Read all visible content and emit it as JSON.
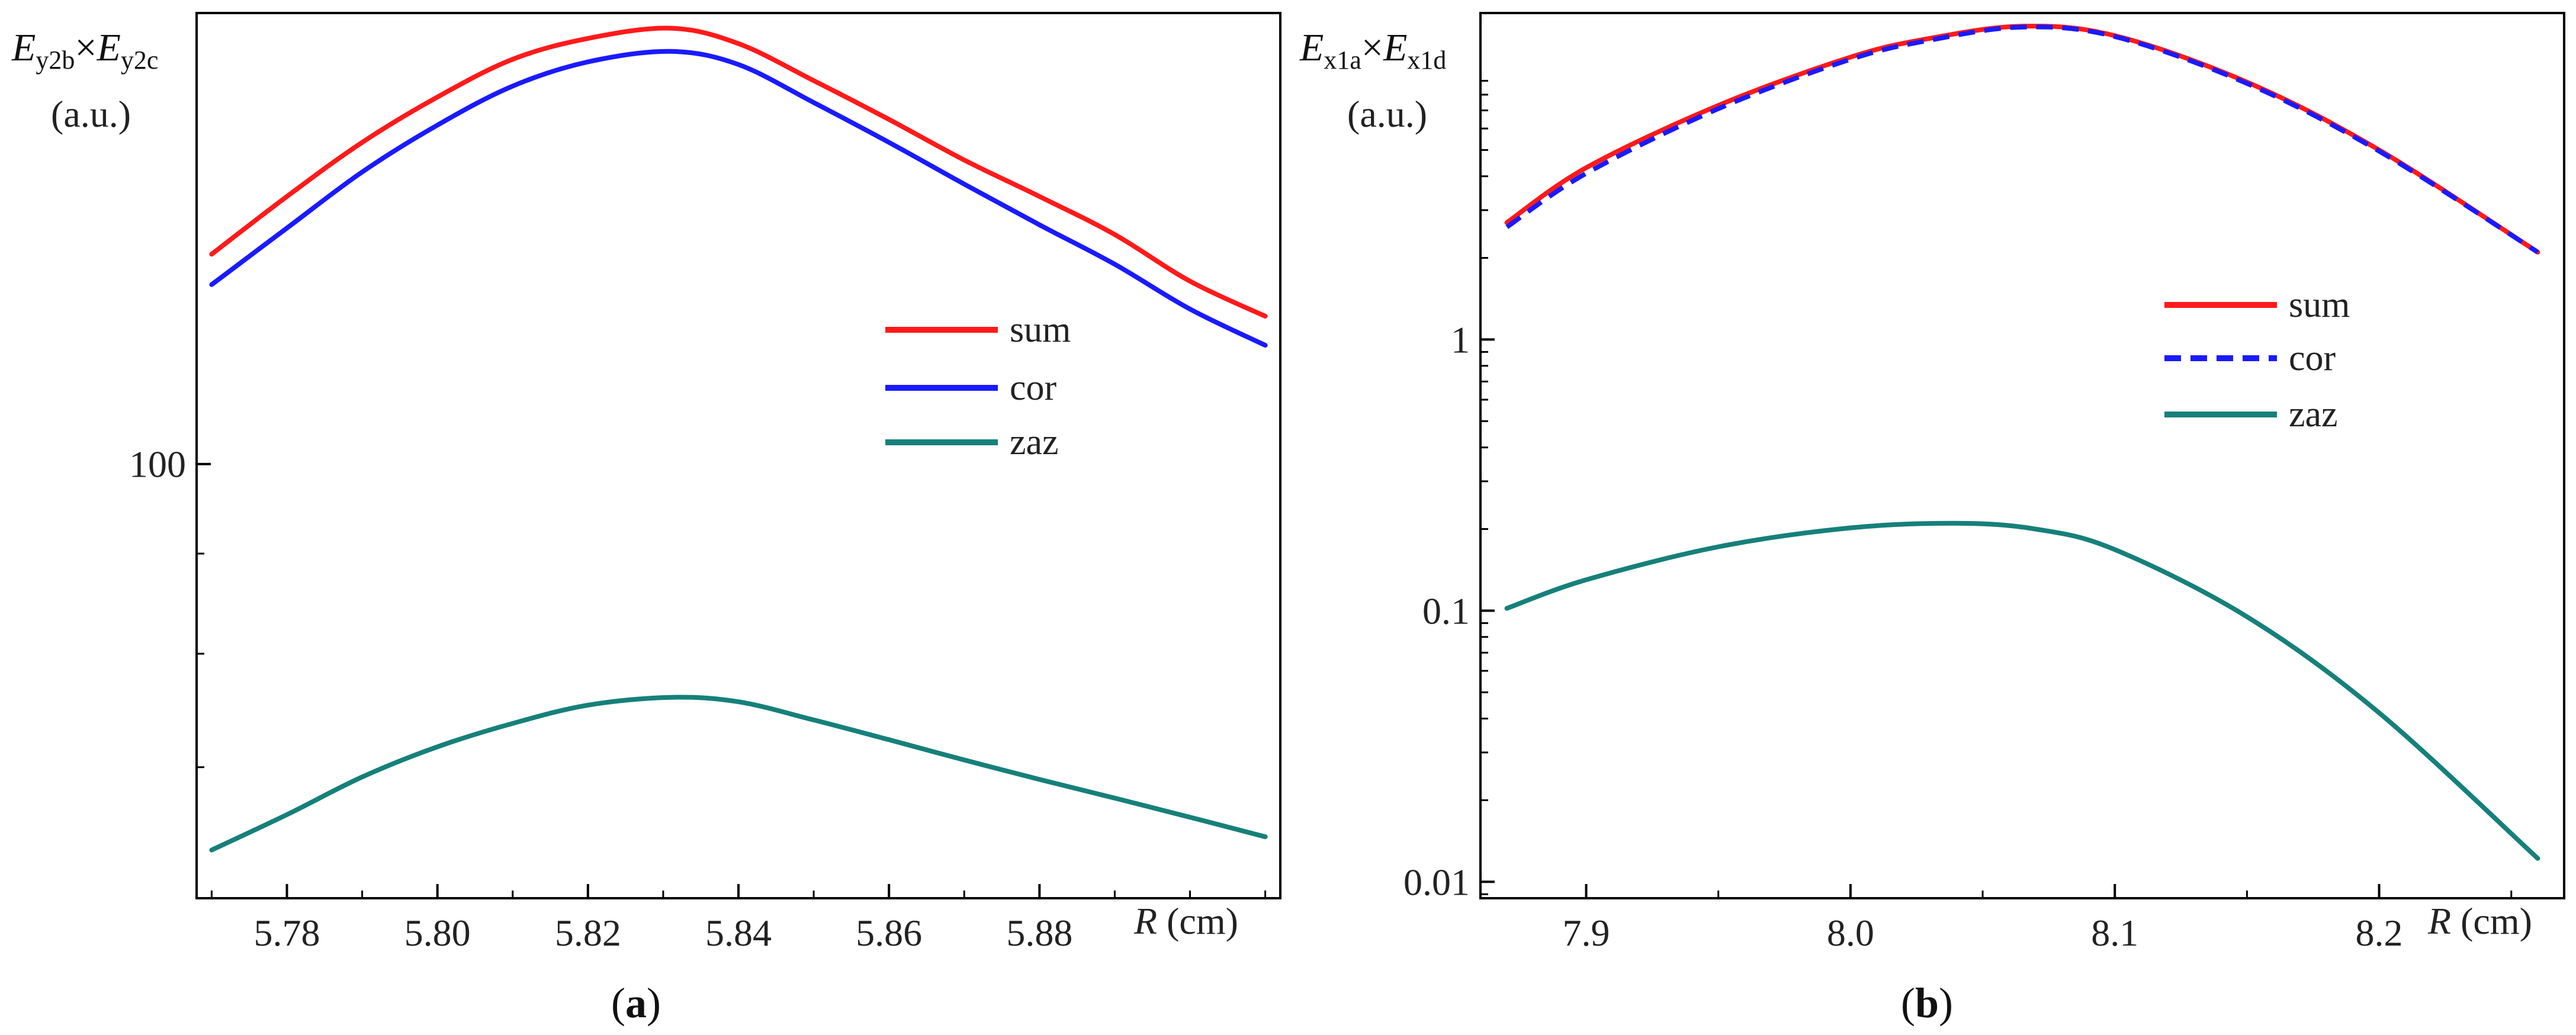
{
  "chart_data": [
    {
      "type": "line",
      "panel_label": {
        "open": "(",
        "letter": "a",
        "close": ")"
      },
      "ylabel": {
        "base1": "E",
        "sub1": "y2b",
        "times": "×",
        "base2": "E",
        "sub2": "y2c",
        "unit": "(a.u.)"
      },
      "xlabel": {
        "symbol": "R",
        "unit": "(cm)"
      },
      "x_log": false,
      "y_log": true,
      "xlim": [
        5.768,
        5.912
      ],
      "ylim": [
        60,
        170
      ],
      "x_ticks": [
        "5.78",
        "5.80",
        "5.82",
        "5.84",
        "5.86",
        "5.88"
      ],
      "y_ticks": [
        "100"
      ],
      "legend_position": "center-right",
      "series": [
        {
          "name": "sum",
          "color": "#ff1a1a",
          "dash": "solid",
          "x": [
            5.77,
            5.78,
            5.79,
            5.8,
            5.81,
            5.82,
            5.831,
            5.84,
            5.85,
            5.86,
            5.87,
            5.88,
            5.89,
            5.9,
            5.91
          ],
          "y": [
            128,
            137,
            146,
            154,
            161,
            165,
            167,
            164,
            157,
            150,
            143,
            137,
            131,
            124,
            119
          ]
        },
        {
          "name": "cor",
          "color": "#1a1aff",
          "dash": "solid",
          "x": [
            5.77,
            5.78,
            5.79,
            5.8,
            5.81,
            5.82,
            5.831,
            5.84,
            5.85,
            5.86,
            5.87,
            5.88,
            5.89,
            5.9,
            5.91
          ],
          "y": [
            123.5,
            132,
            141,
            149,
            156,
            160.5,
            162.5,
            160,
            153,
            146,
            139,
            132.5,
            126.5,
            120,
            115
          ]
        },
        {
          "name": "zaz",
          "color": "#16807a",
          "dash": "solid",
          "x": [
            5.77,
            5.78,
            5.79,
            5.8,
            5.81,
            5.82,
            5.831,
            5.84,
            5.85,
            5.86,
            5.87,
            5.88,
            5.89,
            5.9,
            5.91
          ],
          "y": [
            63.5,
            66.2,
            69.2,
            71.7,
            73.7,
            75.3,
            76.0,
            75.6,
            74.0,
            72.3,
            70.6,
            69.0,
            67.5,
            66.0,
            64.5
          ]
        }
      ]
    },
    {
      "type": "line",
      "panel_label": {
        "open": "(",
        "letter": "b",
        "close": ")"
      },
      "ylabel": {
        "base1": "E",
        "sub1": "x1a",
        "times": "×",
        "base2": "E",
        "sub2": "x1d",
        "unit": "(a.u.)"
      },
      "xlabel": {
        "symbol": "R",
        "unit": "(cm)"
      },
      "x_log": false,
      "y_log": true,
      "xlim": [
        7.86,
        8.27
      ],
      "ylim": [
        0.0087,
        16
      ],
      "x_ticks": [
        "7.9",
        "8.0",
        "8.1",
        "8.2"
      ],
      "y_ticks": [
        "0.01",
        "0.1",
        "1"
      ],
      "legend_position": "center-right",
      "series": [
        {
          "name": "sum",
          "color": "#ff1a1a",
          "dash": "solid",
          "x": [
            7.87,
            7.9,
            7.95,
            8.0,
            8.03,
            8.065,
            8.1,
            8.15,
            8.2,
            8.26
          ],
          "y": [
            2.7,
            4.3,
            7.3,
            11.0,
            12.9,
            14.3,
            13.2,
            8.9,
            5.0,
            2.1
          ]
        },
        {
          "name": "cor",
          "color": "#1a1aff",
          "dash": "dash",
          "x": [
            7.87,
            7.9,
            7.95,
            8.0,
            8.03,
            8.065,
            8.1,
            8.15,
            8.2,
            8.26
          ],
          "y": [
            2.6,
            4.1,
            7.1,
            10.8,
            12.7,
            14.2,
            13.1,
            8.8,
            4.95,
            2.1
          ]
        },
        {
          "name": "zaz",
          "color": "#16807a",
          "dash": "solid",
          "x": [
            7.87,
            7.9,
            7.95,
            8.0,
            8.04,
            8.07,
            8.1,
            8.15,
            8.2,
            8.26
          ],
          "y": [
            0.102,
            0.13,
            0.172,
            0.202,
            0.21,
            0.2,
            0.168,
            0.095,
            0.042,
            0.0122
          ]
        }
      ]
    }
  ]
}
